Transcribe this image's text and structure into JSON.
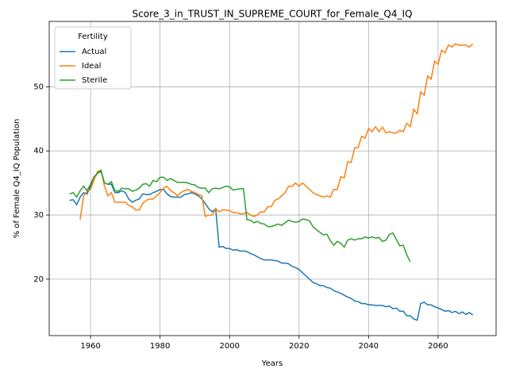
{
  "chart_data": {
    "type": "line",
    "title": "Score_3_in_TRUST_IN_SUPREME_COURT_for_Female_Q4_IQ",
    "xlabel": "Years",
    "ylabel": "% of Female Q4_IQ Population",
    "legend_title": "Fertility",
    "legend": "upper left",
    "grid": true,
    "xlim": [
      1948.1,
      2076.7
    ],
    "ylim": [
      11.2,
      60.2
    ],
    "xticks": [
      1960,
      1980,
      2000,
      2020,
      2040,
      2060
    ],
    "yticks": [
      20,
      30,
      40,
      50
    ],
    "x": [
      1954,
      1955,
      1956,
      1957,
      1958,
      1959,
      1960,
      1961,
      1962,
      1963,
      1964,
      1965,
      1966,
      1967,
      1968,
      1969,
      1970,
      1971,
      1972,
      1973,
      1974,
      1975,
      1976,
      1977,
      1978,
      1979,
      1980,
      1981,
      1982,
      1983,
      1984,
      1985,
      1986,
      1987,
      1988,
      1989,
      1990,
      1991,
      1992,
      1993,
      1994,
      1995,
      1996,
      1997,
      1998,
      1999,
      2000,
      2001,
      2002,
      2003,
      2004,
      2005,
      2006,
      2007,
      2008,
      2009,
      2010,
      2011,
      2012,
      2013,
      2014,
      2015,
      2016,
      2017,
      2018,
      2019,
      2020,
      2021,
      2022,
      2023,
      2024,
      2025,
      2026,
      2027,
      2028,
      2029,
      2030,
      2031,
      2032,
      2033,
      2034,
      2035,
      2036,
      2037,
      2038,
      2039,
      2040,
      2041,
      2042,
      2043,
      2044,
      2045,
      2046,
      2047,
      2048,
      2049,
      2050,
      2051,
      2052,
      2053,
      2054,
      2055,
      2056,
      2057,
      2058,
      2059,
      2060,
      2061,
      2062,
      2063,
      2064,
      2065,
      2066,
      2067,
      2068,
      2069,
      2070
    ],
    "series": [
      {
        "name": "Actual",
        "color": "#1f77b4",
        "values": [
          32.3,
          32.4,
          31.6,
          32.8,
          33.5,
          33.3,
          34.5,
          35.8,
          36.5,
          36.8,
          35.0,
          34.8,
          34.8,
          33.5,
          33.5,
          33.8,
          33.5,
          32.5,
          32.0,
          32.3,
          32.5,
          33.3,
          33.2,
          33.2,
          33.5,
          33.7,
          34.0,
          34.0,
          33.3,
          32.9,
          32.8,
          32.8,
          32.8,
          33.2,
          33.3,
          33.5,
          33.3,
          33.0,
          32.5,
          31.8,
          31.0,
          30.5,
          31.0,
          25.0,
          25.1,
          24.8,
          24.8,
          24.5,
          24.6,
          24.4,
          24.4,
          24.3,
          24.0,
          23.8,
          23.5,
          23.2,
          23.0,
          23.0,
          23.0,
          22.9,
          22.8,
          22.5,
          22.5,
          22.4,
          22.0,
          21.8,
          21.5,
          21.0,
          20.5,
          20.0,
          19.5,
          19.3,
          19.0,
          19.0,
          18.7,
          18.6,
          18.2,
          18.0,
          17.8,
          17.5,
          17.2,
          17.0,
          16.6,
          16.5,
          16.2,
          16.2,
          16.0,
          16.0,
          15.9,
          15.9,
          15.9,
          15.7,
          15.8,
          15.4,
          15.5,
          15.0,
          15.0,
          14.3,
          14.3,
          13.8,
          13.6,
          16.2,
          16.4,
          16.0,
          16.0,
          15.7,
          15.5,
          15.3,
          15.0,
          15.1,
          14.8,
          15.0,
          14.6,
          14.9,
          14.5,
          14.8,
          14.4
        ]
      },
      {
        "name": "Ideal",
        "color": "#ff7f0e",
        "values": [
          null,
          null,
          null,
          29.3,
          33.0,
          33.7,
          34.0,
          35.5,
          36.8,
          37.0,
          34.5,
          33.0,
          33.5,
          32.0,
          32.0,
          32.0,
          32.0,
          31.5,
          31.3,
          30.8,
          30.8,
          31.8,
          32.3,
          32.5,
          32.5,
          33.0,
          33.5,
          34.2,
          34.5,
          33.8,
          33.5,
          33.0,
          33.5,
          33.8,
          34.0,
          33.7,
          33.5,
          33.2,
          33.0,
          29.8,
          30.0,
          30.0,
          31.0,
          30.5,
          30.8,
          30.8,
          30.7,
          30.4,
          30.4,
          30.2,
          30.2,
          30.4,
          30.0,
          29.8,
          30.0,
          30.5,
          30.5,
          31.3,
          31.3,
          32.3,
          32.5,
          33.0,
          33.5,
          34.5,
          34.5,
          35.0,
          34.5,
          35.0,
          34.5,
          34.0,
          33.5,
          33.2,
          33.0,
          32.8,
          33.0,
          32.8,
          34.0,
          34.0,
          36.0,
          35.8,
          38.3,
          38.2,
          40.5,
          40.5,
          42.3,
          42.0,
          43.5,
          43.0,
          43.8,
          43.0,
          43.7,
          42.8,
          43.0,
          42.8,
          42.8,
          43.2,
          43.0,
          44.3,
          43.8,
          46.5,
          45.8,
          49.2,
          48.7,
          51.7,
          51.2,
          54.0,
          53.5,
          55.7,
          55.3,
          56.5,
          56.2,
          56.7,
          56.5,
          56.5,
          56.5,
          56.2,
          56.7
        ]
      },
      {
        "name": "Sterile",
        "color": "#2ca02c",
        "values": [
          33.3,
          33.5,
          32.8,
          33.8,
          34.5,
          33.8,
          34.8,
          36.0,
          36.5,
          37.0,
          35.0,
          34.8,
          35.2,
          33.8,
          33.7,
          34.2,
          34.1,
          34.1,
          33.7,
          33.9,
          34.2,
          34.8,
          34.9,
          34.5,
          35.4,
          35.2,
          35.9,
          35.9,
          35.4,
          35.7,
          35.4,
          35.1,
          35.1,
          35.1,
          35.0,
          34.8,
          34.7,
          34.3,
          34.2,
          34.2,
          33.5,
          34.1,
          34.2,
          34.1,
          34.3,
          34.5,
          34.4,
          33.9,
          34.0,
          34.1,
          34.1,
          29.3,
          29.2,
          28.8,
          29.0,
          28.7,
          28.6,
          28.2,
          28.2,
          28.4,
          28.6,
          28.4,
          28.8,
          29.2,
          29.0,
          28.9,
          29.0,
          29.4,
          29.3,
          29.1,
          28.2,
          27.7,
          27.3,
          26.9,
          27.0,
          26.0,
          25.3,
          25.9,
          25.6,
          25.0,
          26.1,
          26.3,
          26.1,
          26.3,
          26.3,
          26.6,
          26.4,
          26.6,
          26.4,
          26.5,
          25.9,
          26.1,
          27.0,
          27.2,
          26.2,
          25.2,
          25.3,
          23.8,
          22.7,
          null,
          null,
          null,
          null,
          null,
          null,
          null,
          null,
          null,
          null,
          null,
          null,
          null,
          null,
          null,
          null,
          null,
          null
        ]
      }
    ]
  }
}
